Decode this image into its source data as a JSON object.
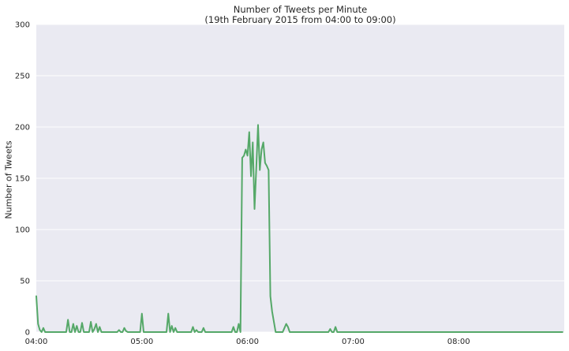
{
  "chart_data": {
    "type": "line",
    "title": "Number of Tweets per Minute",
    "subtitle": "(19th February 2015 from 04:00 to 09:00)",
    "xlabel": "",
    "ylabel": "Number of Tweets",
    "x_start": "04:00",
    "x_end": "09:00",
    "x_ticks": [
      "04:00",
      "05:00",
      "06:00",
      "07:00",
      "08:00"
    ],
    "y_ticks": [
      0,
      50,
      100,
      150,
      200,
      250,
      300
    ],
    "ylim": [
      0,
      300
    ],
    "grid": true,
    "colors": {
      "line": "#55a868",
      "plot_background": "#eaeaf2",
      "grid": "#ffffff",
      "text": "#262626"
    },
    "series": [
      {
        "x_minutes_from_start": [
          0,
          1,
          2,
          3,
          4,
          5,
          6,
          7,
          8,
          9,
          10,
          11,
          12,
          13,
          14,
          15,
          16,
          17,
          18,
          19,
          20,
          21,
          22,
          23,
          24,
          25,
          26,
          27,
          28,
          29,
          30,
          31,
          32,
          33,
          34,
          35,
          36,
          37,
          38,
          39,
          40,
          41,
          42,
          43,
          44,
          45,
          46,
          47,
          48,
          49,
          50,
          51,
          52,
          53,
          54,
          55,
          56,
          57,
          58,
          59,
          60,
          61,
          62,
          63,
          64,
          65,
          66,
          67,
          68,
          69,
          70,
          71,
          72,
          73,
          74,
          75,
          76,
          77,
          78,
          79,
          80,
          81,
          82,
          83,
          84,
          85,
          86,
          87,
          88,
          89,
          90,
          91,
          92,
          93,
          94,
          95,
          96,
          97,
          98,
          99,
          100,
          101,
          102,
          103,
          104,
          105,
          106,
          107,
          108,
          109,
          110,
          111,
          112,
          113,
          114,
          115,
          116,
          117,
          118,
          119,
          120,
          121,
          122,
          123,
          124,
          125,
          126,
          127,
          128,
          129,
          130,
          131,
          132,
          133,
          134,
          135,
          136,
          137,
          138,
          139,
          140,
          141,
          142,
          143,
          144,
          145,
          146,
          147,
          148,
          149,
          150,
          151,
          152,
          153,
          154,
          155,
          156,
          157,
          158,
          159,
          160,
          161,
          162,
          163,
          164,
          165,
          166,
          167,
          168,
          169,
          170,
          171,
          172,
          173,
          174,
          175,
          176,
          177,
          178,
          179,
          180,
          181,
          182,
          183,
          184,
          185,
          186,
          187,
          188,
          189,
          190,
          191,
          192,
          193,
          194,
          195,
          196,
          197,
          198,
          199,
          200,
          201,
          202,
          203,
          204,
          205,
          206,
          207,
          208,
          209,
          210,
          211,
          212,
          213,
          214,
          215,
          216,
          217,
          218,
          219,
          220,
          221,
          222,
          223,
          224,
          225,
          226,
          227,
          228,
          229,
          230,
          231,
          232,
          233,
          234,
          235,
          236,
          237,
          238,
          239,
          240,
          241,
          242,
          243,
          244,
          245,
          246,
          247,
          248,
          249,
          250,
          251,
          252,
          253,
          254,
          255,
          256,
          257,
          258,
          259,
          260,
          261,
          262,
          263,
          264,
          265,
          266,
          267,
          268,
          269,
          270,
          271,
          272,
          273,
          274,
          275,
          276,
          277,
          278,
          279,
          280,
          281,
          282,
          283,
          284,
          285,
          286,
          287,
          288,
          289,
          290,
          291,
          292,
          293,
          294,
          295,
          296,
          297,
          298,
          299
        ],
        "values": [
          35,
          8,
          2,
          0,
          4,
          0,
          0,
          0,
          0,
          0,
          0,
          0,
          0,
          0,
          0,
          0,
          0,
          0,
          12,
          0,
          0,
          8,
          0,
          6,
          0,
          0,
          9,
          0,
          0,
          0,
          0,
          10,
          0,
          3,
          8,
          0,
          5,
          0,
          0,
          0,
          0,
          0,
          0,
          0,
          0,
          0,
          0,
          2,
          0,
          0,
          4,
          1,
          0,
          0,
          0,
          0,
          0,
          0,
          0,
          0,
          18,
          0,
          0,
          0,
          0,
          0,
          0,
          0,
          0,
          0,
          0,
          0,
          0,
          0,
          0,
          18,
          0,
          6,
          0,
          4,
          0,
          0,
          0,
          0,
          0,
          0,
          0,
          0,
          0,
          5,
          0,
          2,
          0,
          0,
          0,
          4,
          0,
          0,
          0,
          0,
          0,
          0,
          0,
          0,
          0,
          0,
          0,
          0,
          0,
          0,
          0,
          0,
          5,
          0,
          0,
          8,
          0,
          170,
          172,
          178,
          172,
          195,
          152,
          185,
          120,
          160,
          202,
          158,
          178,
          185,
          165,
          162,
          158,
          35,
          20,
          10,
          0,
          0,
          0,
          0,
          0,
          4,
          8,
          5,
          0,
          0,
          0,
          0,
          0,
          0,
          0,
          0,
          0,
          0,
          0,
          0,
          0,
          0,
          0,
          0,
          0,
          0,
          0,
          0,
          0,
          0,
          0,
          3,
          0,
          0,
          5,
          0,
          0,
          0,
          0,
          0,
          0,
          0,
          0,
          0,
          0,
          0,
          0,
          0,
          0,
          0,
          0,
          0,
          0,
          0,
          0,
          0,
          0,
          0,
          0,
          0,
          0,
          0,
          0,
          0,
          0,
          0,
          0,
          0,
          0,
          0,
          0,
          0,
          0,
          0,
          0,
          0,
          0,
          0,
          0,
          0,
          0,
          0,
          0,
          0,
          0,
          0,
          0,
          0,
          0,
          0,
          0,
          0,
          0,
          0,
          0,
          0,
          0,
          0,
          0,
          0,
          0,
          0,
          0,
          0,
          0,
          0,
          0,
          0,
          0,
          0,
          0,
          0,
          0,
          0,
          0,
          0,
          0,
          0,
          0,
          0,
          0,
          0,
          0,
          0,
          0,
          0,
          0,
          0,
          0,
          0,
          0,
          0,
          0,
          0,
          0,
          0,
          0,
          0,
          0,
          0,
          0,
          0,
          0,
          0,
          0,
          0,
          0,
          0,
          0,
          0,
          0,
          0,
          0,
          0,
          0,
          0,
          0,
          0,
          0,
          0,
          0,
          0,
          0,
          0,
          0,
          0,
          0,
          0,
          0,
          0,
          0,
          0,
          0,
          0,
          0,
          0,
          0,
          0,
          0,
          0,
          0,
          0,
          0,
          0,
          0,
          0,
          0,
          0
        ]
      }
    ]
  }
}
